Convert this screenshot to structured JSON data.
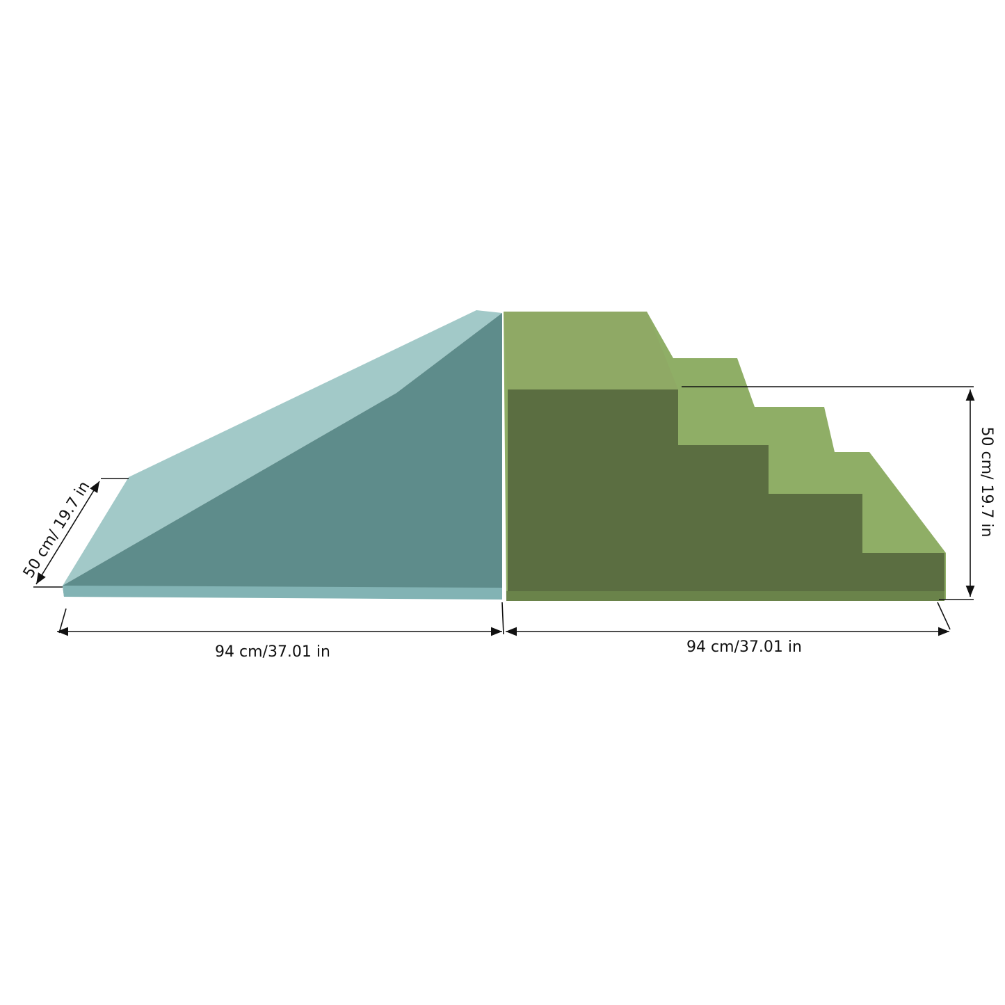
{
  "dimensions": {
    "ramp_depth": "50 cm/ 19.7 in",
    "ramp_length": "94 cm/37.01 in",
    "stairs_length": "94 cm/37.01 in",
    "stairs_height": "50 cm/ 19.7 in"
  }
}
